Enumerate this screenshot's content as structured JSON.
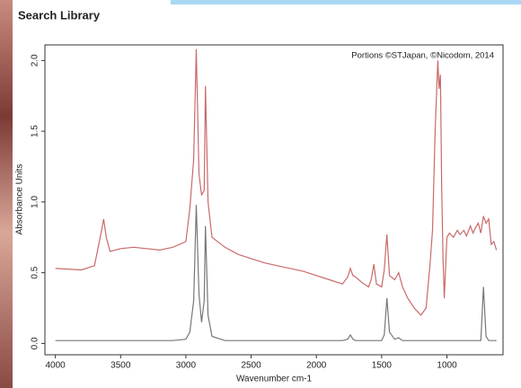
{
  "window_title": "Search Library",
  "chart_data": {
    "type": "line",
    "annotation": "Portions ©STJapan, ©Nicodom, 2014",
    "x_label": "Wavenumber cm-1",
    "y_label": "Absorbance Units",
    "xlim": [
      4080,
      570
    ],
    "ylim": [
      -0.08,
      2.11
    ],
    "xticks": [
      4000,
      3500,
      3000,
      2500,
      2000,
      1500,
      1000
    ],
    "yticks": [
      {
        "value": 0,
        "label": "0.0"
      },
      0.5,
      {
        "value": 1,
        "label": "1.0"
      },
      1.5,
      {
        "value": 2,
        "label": "2.0"
      }
    ],
    "x": [
      4000,
      3800,
      3700,
      3650,
      3630,
      3610,
      3580,
      3500,
      3400,
      3300,
      3200,
      3100,
      3000,
      2970,
      2940,
      2920,
      2900,
      2880,
      2860,
      2850,
      2830,
      2800,
      2700,
      2600,
      2500,
      2400,
      2300,
      2200,
      2100,
      2000,
      1900,
      1800,
      1760,
      1740,
      1720,
      1700,
      1650,
      1600,
      1580,
      1560,
      1540,
      1500,
      1480,
      1460,
      1440,
      1400,
      1370,
      1340,
      1300,
      1250,
      1200,
      1160,
      1130,
      1110,
      1090,
      1070,
      1060,
      1050,
      1040,
      1030,
      1020,
      1000,
      980,
      950,
      920,
      900,
      870,
      850,
      820,
      800,
      780,
      760,
      740,
      720,
      700,
      680,
      660,
      640,
      620
    ],
    "series": [
      {
        "color": "#c96a6a",
        "values": [
          0.53,
          0.52,
          0.55,
          0.78,
          0.88,
          0.75,
          0.65,
          0.67,
          0.68,
          0.67,
          0.66,
          0.68,
          0.72,
          0.95,
          1.3,
          2.08,
          1.2,
          1.05,
          1.08,
          1.82,
          1.0,
          0.75,
          0.68,
          0.63,
          0.6,
          0.57,
          0.55,
          0.53,
          0.51,
          0.48,
          0.45,
          0.42,
          0.47,
          0.53,
          0.48,
          0.47,
          0.43,
          0.4,
          0.45,
          0.56,
          0.42,
          0.4,
          0.52,
          0.77,
          0.48,
          0.45,
          0.5,
          0.4,
          0.32,
          0.25,
          0.2,
          0.25,
          0.55,
          0.8,
          1.5,
          2.0,
          1.8,
          1.9,
          1.1,
          0.6,
          0.32,
          0.75,
          0.78,
          0.75,
          0.8,
          0.77,
          0.8,
          0.76,
          0.83,
          0.78,
          0.82,
          0.85,
          0.78,
          0.9,
          0.85,
          0.88,
          0.7,
          0.72,
          0.66
        ]
      },
      {
        "color": "#777777",
        "values": [
          0.02,
          0.02,
          0.02,
          0.02,
          0.02,
          0.02,
          0.02,
          0.02,
          0.02,
          0.02,
          0.02,
          0.02,
          0.03,
          0.08,
          0.3,
          0.98,
          0.35,
          0.15,
          0.3,
          0.83,
          0.2,
          0.05,
          0.02,
          0.02,
          0.02,
          0.02,
          0.02,
          0.02,
          0.02,
          0.02,
          0.02,
          0.02,
          0.03,
          0.06,
          0.03,
          0.02,
          0.02,
          0.02,
          0.02,
          0.02,
          0.02,
          0.02,
          0.06,
          0.32,
          0.08,
          0.03,
          0.04,
          0.02,
          0.02,
          0.02,
          0.02,
          0.02,
          0.02,
          0.02,
          0.02,
          0.02,
          0.02,
          0.02,
          0.02,
          0.02,
          0.02,
          0.02,
          0.02,
          0.02,
          0.02,
          0.02,
          0.02,
          0.02,
          0.02,
          0.02,
          0.02,
          0.02,
          0.02,
          0.4,
          0.05,
          0.02,
          0.02,
          0.02,
          0.02
        ]
      }
    ]
  }
}
